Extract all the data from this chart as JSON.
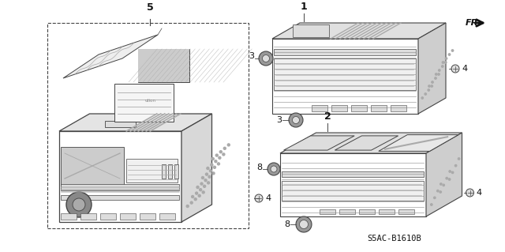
{
  "bg_color": "#ffffff",
  "line_color": "#444444",
  "dark_color": "#111111",
  "gray1": "#cccccc",
  "gray2": "#aaaaaa",
  "gray3": "#888888",
  "gray4": "#dddddd",
  "part_number": "S5AC-B1610B",
  "label_fontsize": 8,
  "fig_w": 6.4,
  "fig_h": 3.19,
  "dpi": 100
}
